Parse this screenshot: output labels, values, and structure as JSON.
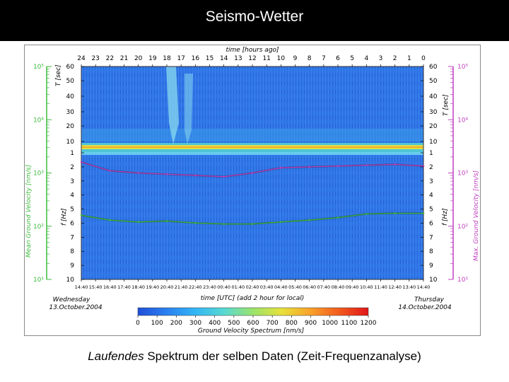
{
  "slide": {
    "title": "Seismo-Wetter",
    "caption_italic": "Laufendes",
    "caption_rest": " Spektrum der selben Daten (Zeit-Frequenzanalyse)"
  },
  "colors": {
    "mean_axis": "#3dbb3d",
    "max_axis": "#c040c0",
    "spectrum_background": "#2f74e6",
    "colorbar": [
      "#1f4fd8",
      "#2b80f0",
      "#33b6f5",
      "#58d9d2",
      "#9be36a",
      "#e7e13a",
      "#f9a02a",
      "#f25a1c",
      "#e0161a"
    ]
  },
  "chart_data": {
    "type": "heatmap",
    "top_axis_title": "time [hours ago]",
    "top_axis_ticks": [
      "24",
      "23",
      "22",
      "21",
      "20",
      "19",
      "18",
      "17",
      "16",
      "15",
      "14",
      "13",
      "12",
      "11",
      "10",
      "9",
      "8",
      "7",
      "6",
      "5",
      "4",
      "3",
      "2",
      "1",
      "0"
    ],
    "bottom_axis_title": "time [UTC] (add 2 hour for local)",
    "bottom_axis_ticks": [
      "14:40",
      "15:40",
      "16:40",
      "17:40",
      "18:40",
      "19:40",
      "20:40",
      "21:40",
      "22:40",
      "23:40",
      "00:40",
      "01:40",
      "02:40",
      "03:40",
      "04:40",
      "05:40",
      "06:40",
      "07:40",
      "08:40",
      "09:40",
      "10:40",
      "11:40",
      "12:40",
      "13:40",
      "14:40"
    ],
    "left_inner_title": "T [sec]",
    "period_ticks": [
      "60",
      "50",
      "40",
      "30",
      "20",
      "10",
      "1"
    ],
    "left_freq_title": "f [Hz]",
    "freq_ticks": [
      "2",
      "3",
      "4",
      "5",
      "6",
      "7",
      "8",
      "9",
      "10"
    ],
    "right_inner_title": "T [sec]",
    "right_freq_title": "f [Hz]",
    "left_outer_title": "Mean Ground Velocity [nm/s]",
    "left_outer_ticks": [
      "10⁵",
      "10⁴",
      "10³",
      "10²",
      "10¹"
    ],
    "right_outer_title": "Max. Ground Velocity [nm/s]",
    "right_outer_ticks": [
      "10⁵",
      "10⁴",
      "10³",
      "10²",
      "10¹"
    ],
    "start_label": {
      "day": "Wednesday",
      "date": "13.October.2004"
    },
    "end_label": {
      "day": "Thursday",
      "date": "14.October.2004"
    },
    "colorbar_title": "Ground Velocity Spectrum [nm/s]",
    "colorbar_ticks": [
      "0",
      "100",
      "200",
      "300",
      "400",
      "500",
      "600",
      "700",
      "800",
      "900",
      "1000",
      "1100",
      "1200"
    ],
    "colorbar_range": [
      0,
      1200
    ],
    "hours_ago": [
      24,
      22,
      20,
      18,
      16,
      14,
      12,
      10,
      8,
      6,
      4,
      2,
      0
    ],
    "series": [
      {
        "color": "#c040c0",
        "values": [
          1600,
          1100,
          1000,
          950,
          900,
          850,
          1000,
          1250,
          1300,
          1350,
          1400,
          1450,
          1350
        ]
      },
      {
        "color": "#3dbb3d",
        "values": [
          160,
          130,
          120,
          125,
          115,
          110,
          110,
          120,
          130,
          145,
          170,
          175,
          175
        ]
      }
    ]
  }
}
